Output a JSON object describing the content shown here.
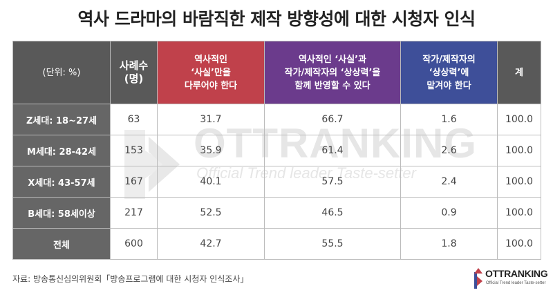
{
  "title": "역사 드라마의 바람직한 제작 방향성에 대한 시청자 인식",
  "table": {
    "headers": {
      "unit": "(단위: %)",
      "count_line1": "사례수",
      "count_line2": "(명)",
      "fact_line1": "역사적인",
      "fact_line2": "‘사실’만을",
      "fact_line3": "다루어야 한다",
      "both_line1": "역사적인 ‘사실’과",
      "both_line2": "작가/제작자의 ‘상상력’을",
      "both_line3": "함께 반영할 수 있다",
      "imagination_line1": "작가/제작자의",
      "imagination_line2": "‘상상력’에",
      "imagination_line3": "맡겨야 한다",
      "total": "계"
    },
    "rows": [
      {
        "label": "Z세대: 18~27세",
        "count": "63",
        "fact": "31.7",
        "both": "66.7",
        "imagination": "1.6",
        "total": "100.0"
      },
      {
        "label": "M세대: 28-42세",
        "count": "153",
        "fact": "35.9",
        "both": "61.4",
        "imagination": "2.6",
        "total": "100.0"
      },
      {
        "label": "X세대: 43-57세",
        "count": "167",
        "fact": "40.1",
        "both": "57.5",
        "imagination": "2.4",
        "total": "100.0"
      },
      {
        "label": "B세대: 58세이상",
        "count": "217",
        "fact": "52.5",
        "both": "46.5",
        "imagination": "0.9",
        "total": "100.0"
      },
      {
        "label": "전체",
        "count": "600",
        "fact": "42.7",
        "both": "55.5",
        "imagination": "1.8",
        "total": "100.0"
      }
    ]
  },
  "watermark": {
    "main": "OTTRANKING",
    "sub": "Official Trend leader Taste-setter"
  },
  "footer": {
    "source": "자료: 방송통신심의위원회「방송프로그램에 대한 시청자 인식조사」"
  },
  "brand": {
    "name": "OTTRANKING",
    "tagline": "Official Trend leader Taste-setter"
  },
  "colors": {
    "header_dark": "#595959",
    "header_red": "#c0414b",
    "header_purple": "#6b3b8c",
    "header_blue": "#3e4f99",
    "row_label": "#666666"
  }
}
